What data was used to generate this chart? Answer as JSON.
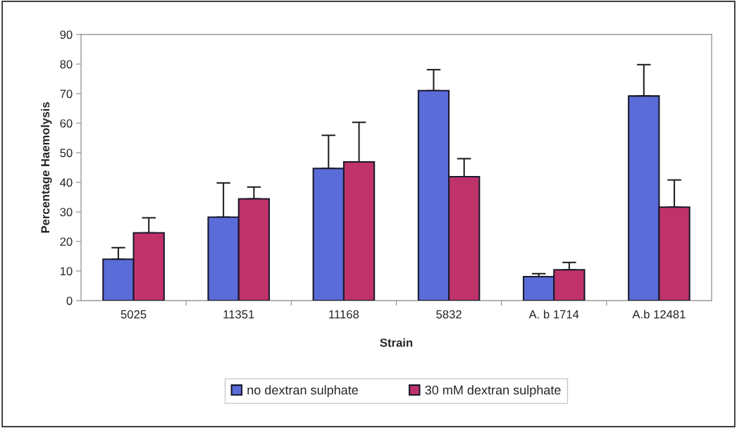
{
  "chart_data": {
    "type": "bar",
    "xlabel": "Strain",
    "ylabel": "Percentage Haemolysis",
    "categories": [
      "5025",
      "11351",
      "11168",
      "5832",
      "A. b 1714",
      "A.b 12481"
    ],
    "series": [
      {
        "name": "no dextran sulphate",
        "color": "#5a6cd8",
        "values": [
          14.0,
          28.2,
          44.7,
          71.0,
          8.1,
          69.2
        ],
        "errors": [
          [
            14.0,
            17.9
          ],
          [
            28.2,
            39.8
          ],
          [
            44.7,
            55.9
          ],
          [
            71.0,
            78.1
          ],
          [
            8.1,
            9.1
          ],
          [
            69.2,
            79.8
          ]
        ]
      },
      {
        "name": "30 mM dextran sulphate",
        "color": "#c0336a",
        "values": [
          22.9,
          34.4,
          46.9,
          41.9,
          10.4,
          31.6
        ],
        "errors": [
          [
            22.9,
            28.0
          ],
          [
            34.4,
            38.4
          ],
          [
            46.9,
            60.3
          ],
          [
            41.9,
            48.0
          ],
          [
            10.4,
            12.9
          ],
          [
            31.6,
            40.8
          ]
        ]
      }
    ],
    "ylim": [
      0,
      90
    ],
    "yticks": [
      0,
      10,
      20,
      30,
      40,
      50,
      60,
      70,
      80,
      90
    ],
    "grid": false,
    "legend": "bottom"
  }
}
